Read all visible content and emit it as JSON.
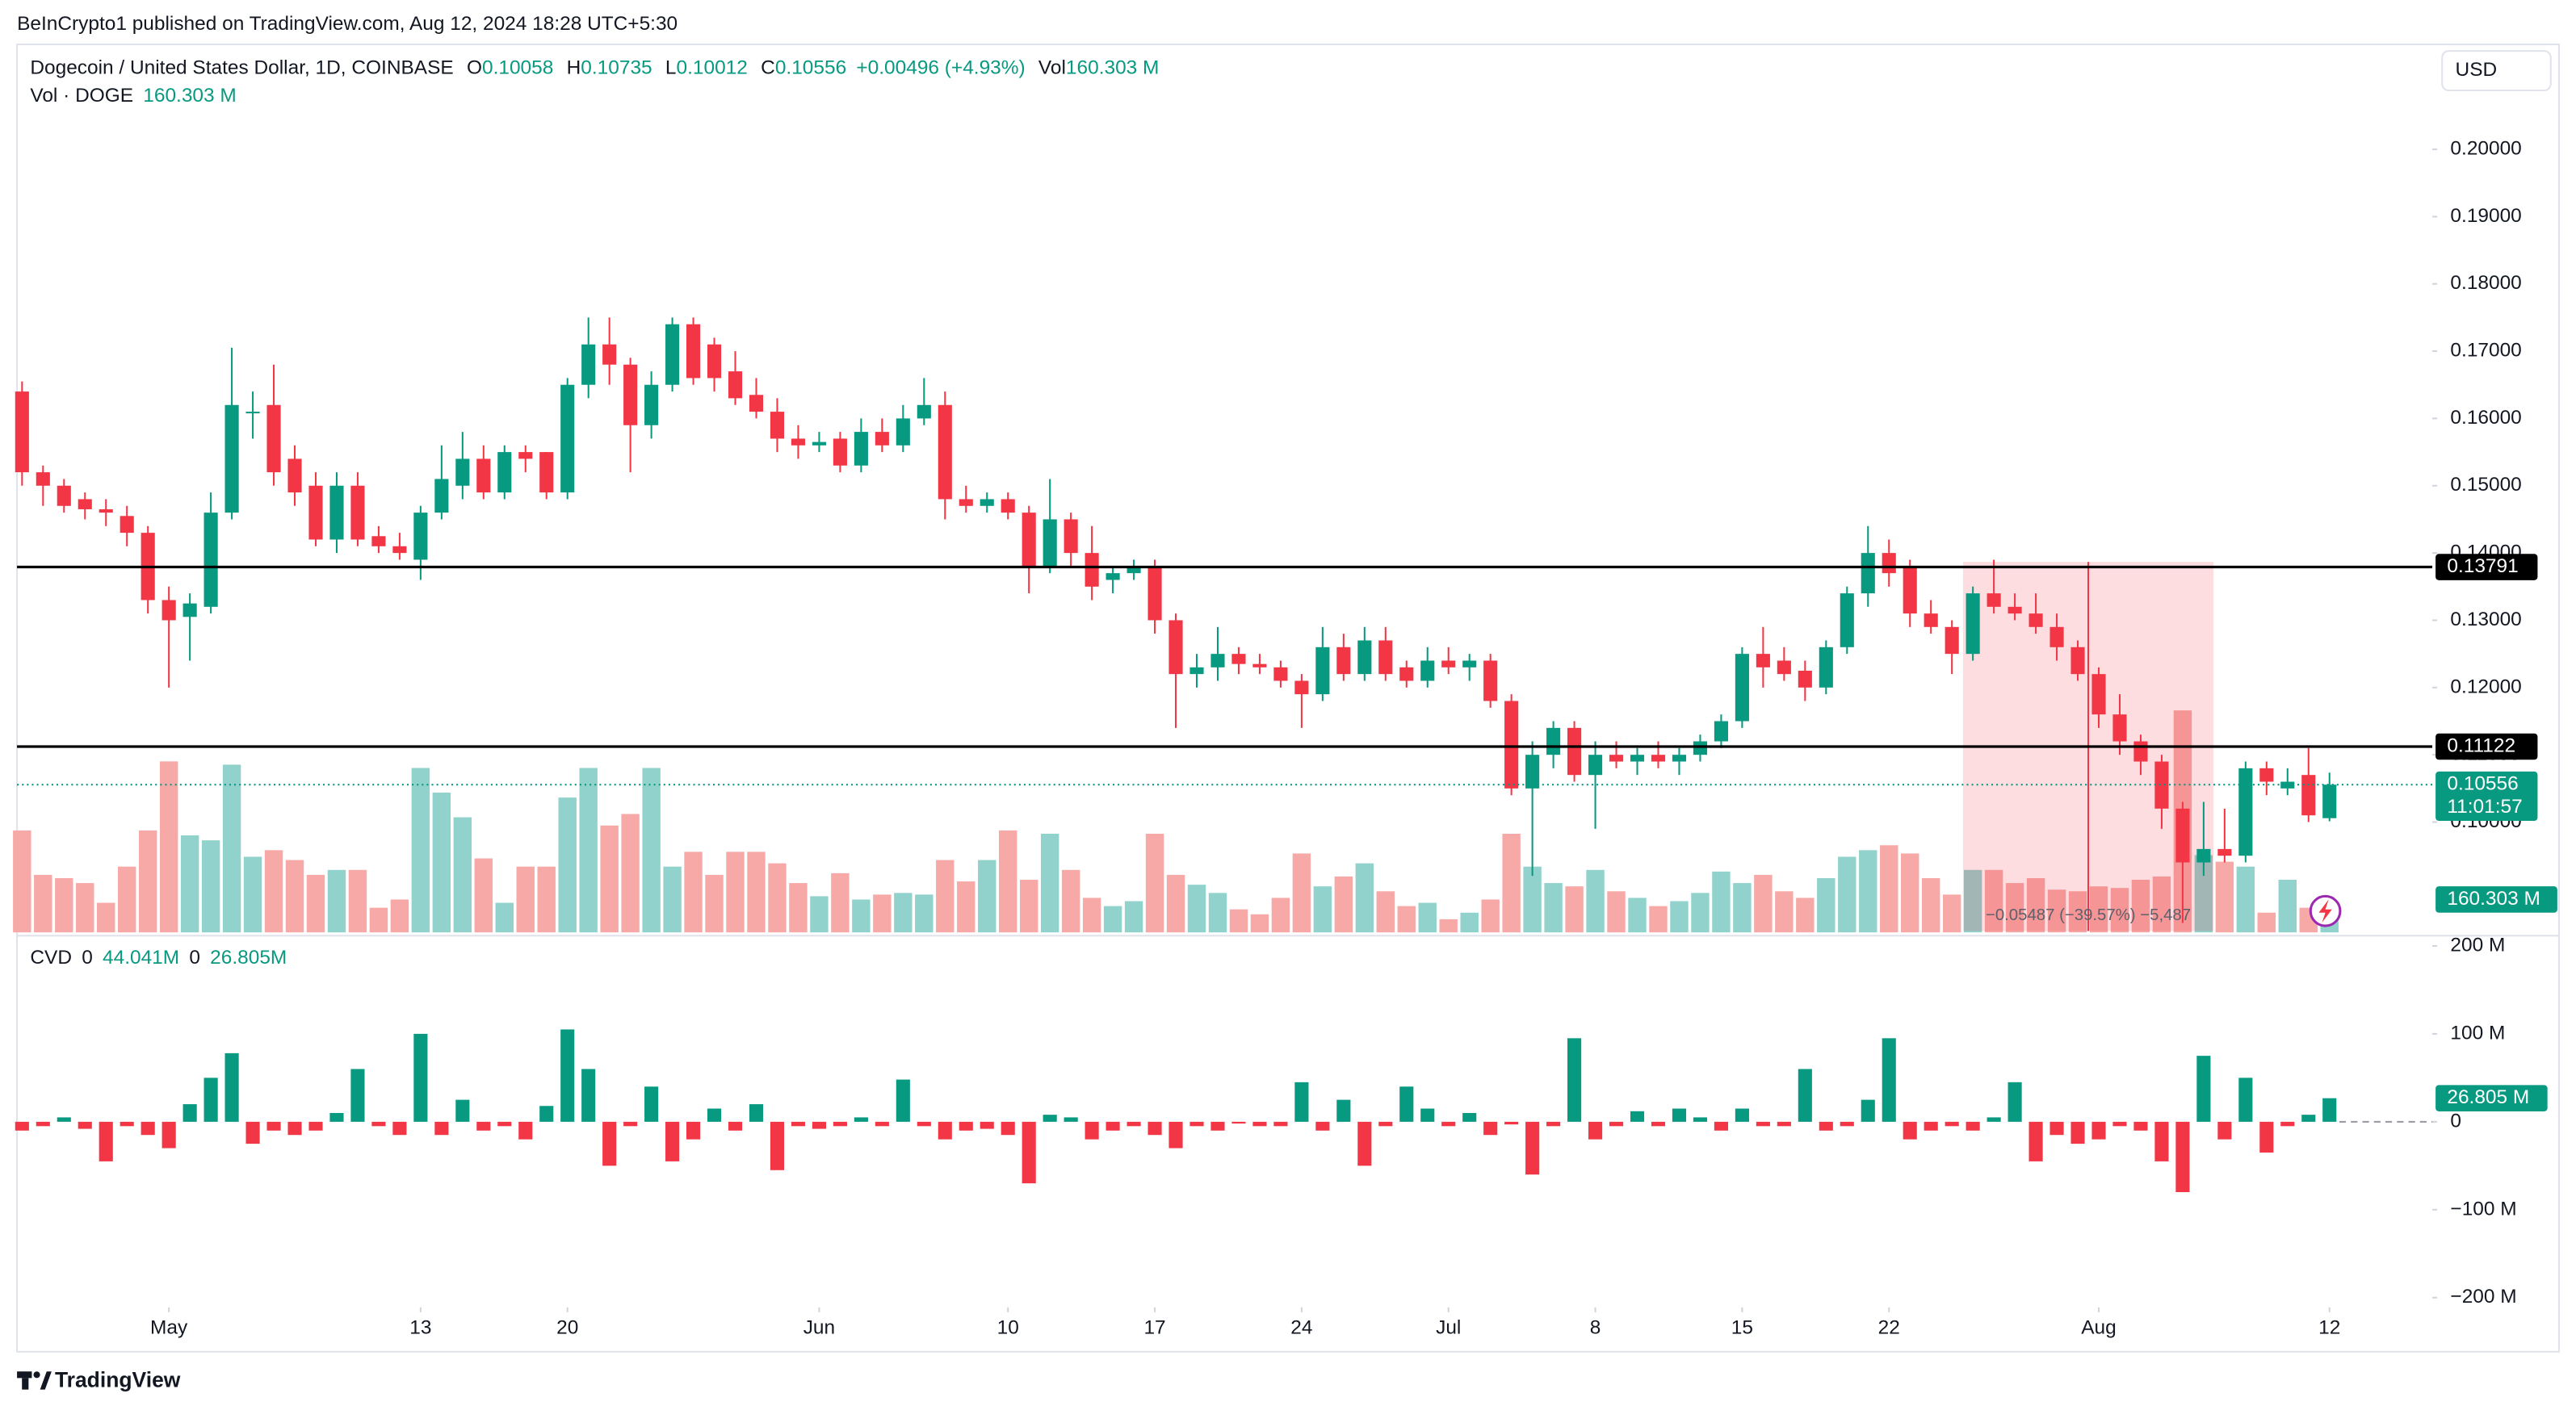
{
  "header": "BeInCrypto1 published on TradingView.com, Aug 12, 2024 18:28 UTC+5:30",
  "currency": "USD",
  "footer": "TradingView",
  "chart_data": [
    {
      "type": "candlestick",
      "title": "Dogecoin / United States Dollar, 1D, COINBASE",
      "legend_labels": [
        "O",
        "H",
        "L",
        "C",
        "Vol"
      ],
      "open": 0.10058,
      "high": 0.10735,
      "low": 0.10012,
      "close": 0.10556,
      "change": "+0.00496 (+4.93%)",
      "volume_text": "160.303 M",
      "up_color": "#089981",
      "down_color": "#f23645",
      "ylim": [
        0.0836,
        0.2156
      ],
      "yticks": [
        {
          "value": 0.1,
          "label": "0.10000"
        },
        {
          "value": 0.11,
          "label": "0.11000"
        },
        {
          "value": 0.12,
          "label": "0.12000"
        },
        {
          "value": 0.13,
          "label": "0.13000"
        },
        {
          "value": 0.14,
          "label": "0.14000"
        },
        {
          "value": 0.15,
          "label": "0.15000"
        },
        {
          "value": 0.16,
          "label": "0.16000"
        },
        {
          "value": 0.17,
          "label": "0.17000"
        },
        {
          "value": 0.18,
          "label": "0.18000"
        },
        {
          "value": 0.19,
          "label": "0.19000"
        },
        {
          "value": 0.2,
          "label": "0.20000"
        }
      ],
      "xlim": [
        -0.24,
        114.9
      ],
      "xticks": [
        {
          "value": 7,
          "label": "May"
        },
        {
          "value": 19,
          "label": "13"
        },
        {
          "value": 26,
          "label": "20"
        },
        {
          "value": 38,
          "label": "Jun"
        },
        {
          "value": 47,
          "label": "10"
        },
        {
          "value": 54,
          "label": "17"
        },
        {
          "value": 61,
          "label": "24"
        },
        {
          "value": 68,
          "label": "Jul"
        },
        {
          "value": 75,
          "label": "8"
        },
        {
          "value": 82,
          "label": "15"
        },
        {
          "value": 89,
          "label": "22"
        },
        {
          "value": 99,
          "label": "Aug"
        },
        {
          "value": 110,
          "label": "12"
        }
      ],
      "candles": [
        [
          0.164,
          0.1655,
          0.15,
          0.152
        ],
        [
          0.152,
          0.153,
          0.147,
          0.15
        ],
        [
          0.15,
          0.151,
          0.146,
          0.147
        ],
        [
          0.148,
          0.149,
          0.145,
          0.1465
        ],
        [
          0.1465,
          0.148,
          0.144,
          0.146
        ],
        [
          0.1455,
          0.147,
          0.141,
          0.143
        ],
        [
          0.143,
          0.144,
          0.131,
          0.133
        ],
        [
          0.133,
          0.135,
          0.12,
          0.13
        ],
        [
          0.1305,
          0.134,
          0.124,
          0.1325
        ],
        [
          0.132,
          0.149,
          0.131,
          0.146
        ],
        [
          0.146,
          0.1705,
          0.145,
          0.162
        ],
        [
          0.161,
          0.164,
          0.157,
          0.161
        ],
        [
          0.162,
          0.168,
          0.15,
          0.152
        ],
        [
          0.154,
          0.156,
          0.147,
          0.149
        ],
        [
          0.15,
          0.152,
          0.141,
          0.142
        ],
        [
          0.142,
          0.152,
          0.14,
          0.15
        ],
        [
          0.15,
          0.152,
          0.141,
          0.142
        ],
        [
          0.1425,
          0.144,
          0.14,
          0.141
        ],
        [
          0.141,
          0.143,
          0.139,
          0.14
        ],
        [
          0.139,
          0.147,
          0.136,
          0.146
        ],
        [
          0.146,
          0.156,
          0.145,
          0.151
        ],
        [
          0.15,
          0.158,
          0.148,
          0.154
        ],
        [
          0.154,
          0.156,
          0.148,
          0.149
        ],
        [
          0.149,
          0.156,
          0.148,
          0.155
        ],
        [
          0.155,
          0.156,
          0.152,
          0.154
        ],
        [
          0.155,
          0.155,
          0.148,
          0.149
        ],
        [
          0.149,
          0.166,
          0.148,
          0.165
        ],
        [
          0.165,
          0.175,
          0.163,
          0.171
        ],
        [
          0.171,
          0.175,
          0.165,
          0.168
        ],
        [
          0.168,
          0.169,
          0.152,
          0.159
        ],
        [
          0.159,
          0.167,
          0.157,
          0.165
        ],
        [
          0.165,
          0.175,
          0.164,
          0.174
        ],
        [
          0.174,
          0.175,
          0.165,
          0.166
        ],
        [
          0.171,
          0.172,
          0.164,
          0.166
        ],
        [
          0.167,
          0.17,
          0.162,
          0.163
        ],
        [
          0.1635,
          0.166,
          0.16,
          0.161
        ],
        [
          0.161,
          0.163,
          0.155,
          0.157
        ],
        [
          0.157,
          0.159,
          0.154,
          0.156
        ],
        [
          0.156,
          0.158,
          0.155,
          0.1565
        ],
        [
          0.157,
          0.158,
          0.152,
          0.153
        ],
        [
          0.153,
          0.16,
          0.152,
          0.158
        ],
        [
          0.158,
          0.16,
          0.155,
          0.156
        ],
        [
          0.156,
          0.162,
          0.155,
          0.16
        ],
        [
          0.16,
          0.166,
          0.159,
          0.162
        ],
        [
          0.162,
          0.164,
          0.145,
          0.148
        ],
        [
          0.148,
          0.15,
          0.146,
          0.147
        ],
        [
          0.147,
          0.149,
          0.146,
          0.148
        ],
        [
          0.148,
          0.149,
          0.145,
          0.146
        ],
        [
          0.146,
          0.147,
          0.134,
          0.138
        ],
        [
          0.138,
          0.151,
          0.137,
          0.145
        ],
        [
          0.145,
          0.146,
          0.138,
          0.14
        ],
        [
          0.14,
          0.144,
          0.133,
          0.135
        ],
        [
          0.136,
          0.138,
          0.134,
          0.137
        ],
        [
          0.137,
          0.139,
          0.136,
          0.138
        ],
        [
          0.138,
          0.139,
          0.128,
          0.13
        ],
        [
          0.13,
          0.131,
          0.114,
          0.122
        ],
        [
          0.122,
          0.125,
          0.12,
          0.123
        ],
        [
          0.123,
          0.129,
          0.121,
          0.125
        ],
        [
          0.125,
          0.126,
          0.122,
          0.1235
        ],
        [
          0.1235,
          0.125,
          0.122,
          0.123
        ],
        [
          0.123,
          0.124,
          0.12,
          0.121
        ],
        [
          0.121,
          0.122,
          0.114,
          0.119
        ],
        [
          0.119,
          0.129,
          0.118,
          0.126
        ],
        [
          0.126,
          0.128,
          0.121,
          0.122
        ],
        [
          0.122,
          0.129,
          0.121,
          0.127
        ],
        [
          0.127,
          0.129,
          0.121,
          0.122
        ],
        [
          0.123,
          0.124,
          0.12,
          0.121
        ],
        [
          0.121,
          0.126,
          0.12,
          0.124
        ],
        [
          0.124,
          0.126,
          0.122,
          0.123
        ],
        [
          0.123,
          0.125,
          0.121,
          0.124
        ],
        [
          0.124,
          0.125,
          0.117,
          0.118
        ],
        [
          0.118,
          0.119,
          0.104,
          0.105
        ],
        [
          0.105,
          0.112,
          0.092,
          0.11
        ],
        [
          0.11,
          0.115,
          0.108,
          0.114
        ],
        [
          0.114,
          0.115,
          0.106,
          0.107
        ],
        [
          0.107,
          0.112,
          0.099,
          0.11
        ],
        [
          0.11,
          0.112,
          0.108,
          0.109
        ],
        [
          0.109,
          0.111,
          0.107,
          0.11
        ],
        [
          0.11,
          0.112,
          0.108,
          0.109
        ],
        [
          0.109,
          0.111,
          0.107,
          0.11
        ],
        [
          0.11,
          0.113,
          0.109,
          0.112
        ],
        [
          0.112,
          0.116,
          0.111,
          0.115
        ],
        [
          0.115,
          0.126,
          0.114,
          0.125
        ],
        [
          0.125,
          0.129,
          0.12,
          0.123
        ],
        [
          0.124,
          0.126,
          0.121,
          0.122
        ],
        [
          0.1225,
          0.124,
          0.118,
          0.12
        ],
        [
          0.12,
          0.127,
          0.119,
          0.126
        ],
        [
          0.126,
          0.135,
          0.125,
          0.134
        ],
        [
          0.134,
          0.144,
          0.132,
          0.14
        ],
        [
          0.14,
          0.142,
          0.135,
          0.137
        ],
        [
          0.138,
          0.139,
          0.129,
          0.131
        ],
        [
          0.131,
          0.133,
          0.128,
          0.129
        ],
        [
          0.129,
          0.13,
          0.122,
          0.125
        ],
        [
          0.125,
          0.135,
          0.124,
          0.134
        ],
        [
          0.134,
          0.139,
          0.131,
          0.132
        ],
        [
          0.132,
          0.134,
          0.13,
          0.131
        ],
        [
          0.131,
          0.134,
          0.128,
          0.129
        ],
        [
          0.129,
          0.131,
          0.124,
          0.126
        ],
        [
          0.126,
          0.127,
          0.121,
          0.122
        ],
        [
          0.122,
          0.123,
          0.114,
          0.116
        ],
        [
          0.116,
          0.119,
          0.11,
          0.112
        ],
        [
          0.112,
          0.113,
          0.107,
          0.109
        ],
        [
          0.109,
          0.11,
          0.099,
          0.102
        ],
        [
          0.102,
          0.103,
          0.085,
          0.094
        ],
        [
          0.094,
          0.103,
          0.092,
          0.096
        ],
        [
          0.096,
          0.102,
          0.094,
          0.095
        ],
        [
          0.095,
          0.109,
          0.094,
          0.108
        ],
        [
          0.108,
          0.109,
          0.104,
          0.106
        ],
        [
          0.105,
          0.108,
          0.104,
          0.106
        ],
        [
          0.107,
          0.111,
          0.1,
          0.101
        ],
        [
          0.10058,
          0.10735,
          0.10012,
          0.10556
        ]
      ],
      "levels": [
        0.13791,
        0.11122
      ],
      "level_color": "#000000",
      "last_price": 0.10556,
      "countdown": "11:01:57",
      "volume": {
        "name": "Vol · DOGE",
        "value_label": "160.303 M",
        "ylim": [
          0,
          5400
        ],
        "up_color": "#92d2cc",
        "down_color": "#f7a9a7",
        "values": [
          620,
          350,
          330,
          300,
          180,
          400,
          620,
          1040,
          590,
          560,
          1020,
          460,
          500,
          440,
          350,
          380,
          380,
          150,
          200,
          1000,
          850,
          700,
          450,
          180,
          400,
          400,
          820,
          1000,
          650,
          720,
          1000,
          400,
          490,
          350,
          490,
          490,
          420,
          300,
          220,
          360,
          200,
          230,
          240,
          230,
          440,
          310,
          440,
          620,
          320,
          600,
          380,
          210,
          160,
          190,
          600,
          350,
          290,
          240,
          140,
          110,
          210,
          480,
          280,
          340,
          420,
          250,
          160,
          180,
          80,
          120,
          200,
          600,
          400,
          300,
          280,
          380,
          250,
          210,
          160,
          190,
          240,
          370,
          300,
          350,
          250,
          210,
          330,
          460,
          500,
          530,
          480,
          330,
          230,
          380,
          380,
          300,
          330,
          260,
          250,
          280,
          270,
          320,
          340,
          1350,
          470,
          430,
          400,
          120,
          320,
          150,
          160.303
        ]
      },
      "measure": {
        "start": 93,
        "end": 104,
        "high": 0.13867,
        "low": 0.0838,
        "color": "#f23645",
        "label": "−0.05487 (−39.57%) −5,487"
      }
    },
    {
      "type": "bar",
      "name": "CVD",
      "legend": [
        "0",
        "44.041M",
        "0",
        "26.805M"
      ],
      "value_label": "26.805 M",
      "up_color": "#089981",
      "down_color": "#f23645",
      "ylim": [
        -211,
        206
      ],
      "yticks": [
        {
          "value": 200,
          "label": "200 M"
        },
        {
          "value": 100,
          "label": "100 M"
        },
        0,
        {
          "value": -100,
          "label": "−100 M"
        },
        {
          "value": -200,
          "label": "−200 M"
        }
      ],
      "values": [
        -10,
        -5,
        5,
        -8,
        -45,
        -5,
        -15,
        -30,
        20,
        50,
        78,
        -25,
        -10,
        -15,
        -10,
        10,
        60,
        -5,
        -15,
        100,
        -15,
        25,
        -10,
        -5,
        -20,
        18,
        105,
        60,
        -50,
        -5,
        40,
        -45,
        -20,
        15,
        -10,
        20,
        -55,
        -5,
        -8,
        -5,
        5,
        -5,
        48,
        -5,
        -20,
        -10,
        -8,
        -15,
        -70,
        8,
        5,
        -20,
        -10,
        -5,
        -15,
        -30,
        -5,
        -10,
        -2,
        -5,
        -5,
        45,
        -10,
        25,
        -50,
        -5,
        40,
        15,
        -5,
        10,
        -15,
        -3,
        -60,
        -5,
        95,
        -20,
        -5,
        12,
        -5,
        15,
        5,
        -10,
        15,
        -5,
        -5,
        60,
        -10,
        -5,
        25,
        95,
        -20,
        -10,
        -5,
        -10,
        5,
        45,
        -45,
        -15,
        -25,
        -20,
        -5,
        -10,
        -45,
        -80,
        75,
        -20,
        50,
        -35,
        -5,
        8,
        26.805
      ]
    }
  ]
}
